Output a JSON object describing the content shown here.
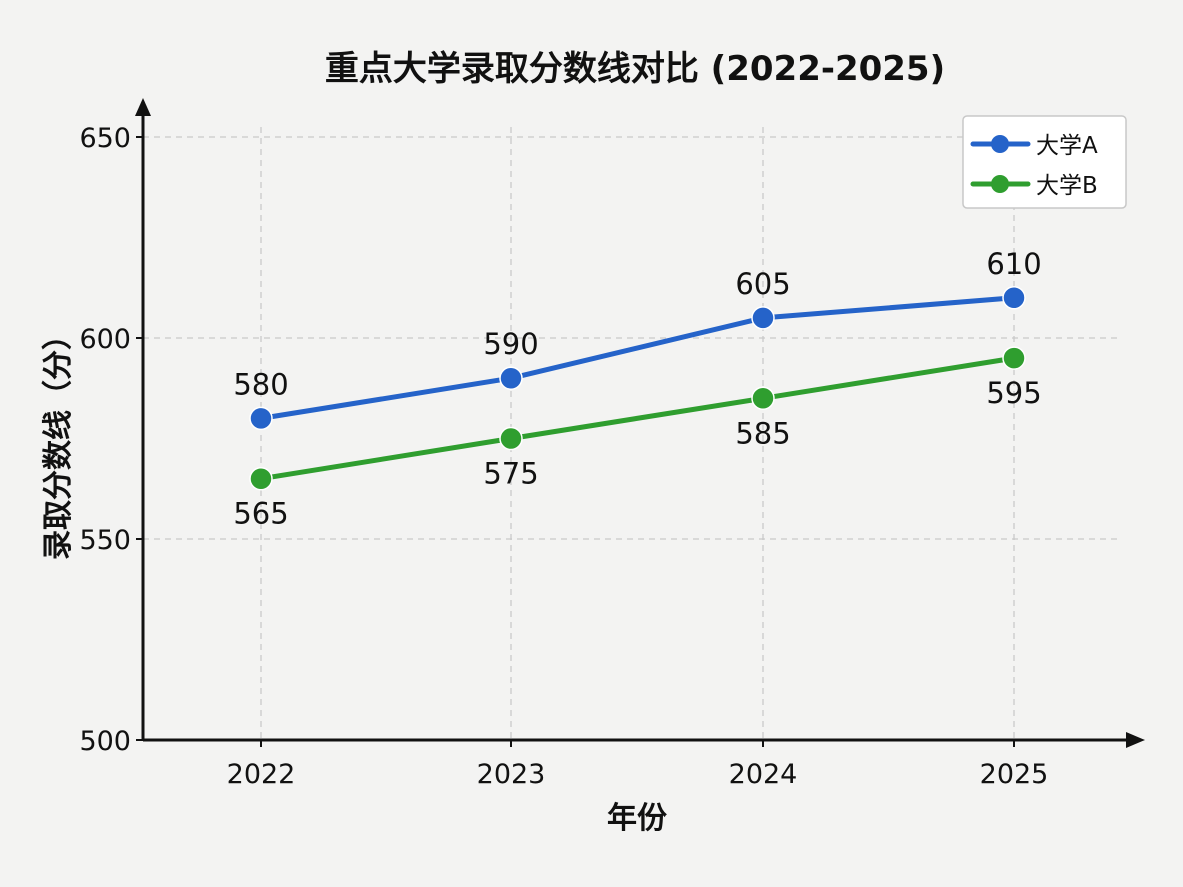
{
  "chart_data": {
    "type": "line",
    "title": "重点大学录取分数线对比 (2022-2025)",
    "xlabel": "年份",
    "ylabel": "录取分数线（分）",
    "categories": [
      "2022",
      "2023",
      "2024",
      "2025"
    ],
    "ylim": [
      500,
      650
    ],
    "yticks": [
      500,
      550,
      600,
      650
    ],
    "grid": true,
    "legend_position": "top-right",
    "series": [
      {
        "name": "大学A",
        "color": "#2563c9",
        "marker": "circle",
        "values": [
          580,
          590,
          605,
          610
        ],
        "label_position": "above"
      },
      {
        "name": "大学B",
        "color": "#2f9e2f",
        "marker": "circle",
        "values": [
          565,
          575,
          585,
          595
        ],
        "label_position": "below"
      }
    ]
  }
}
